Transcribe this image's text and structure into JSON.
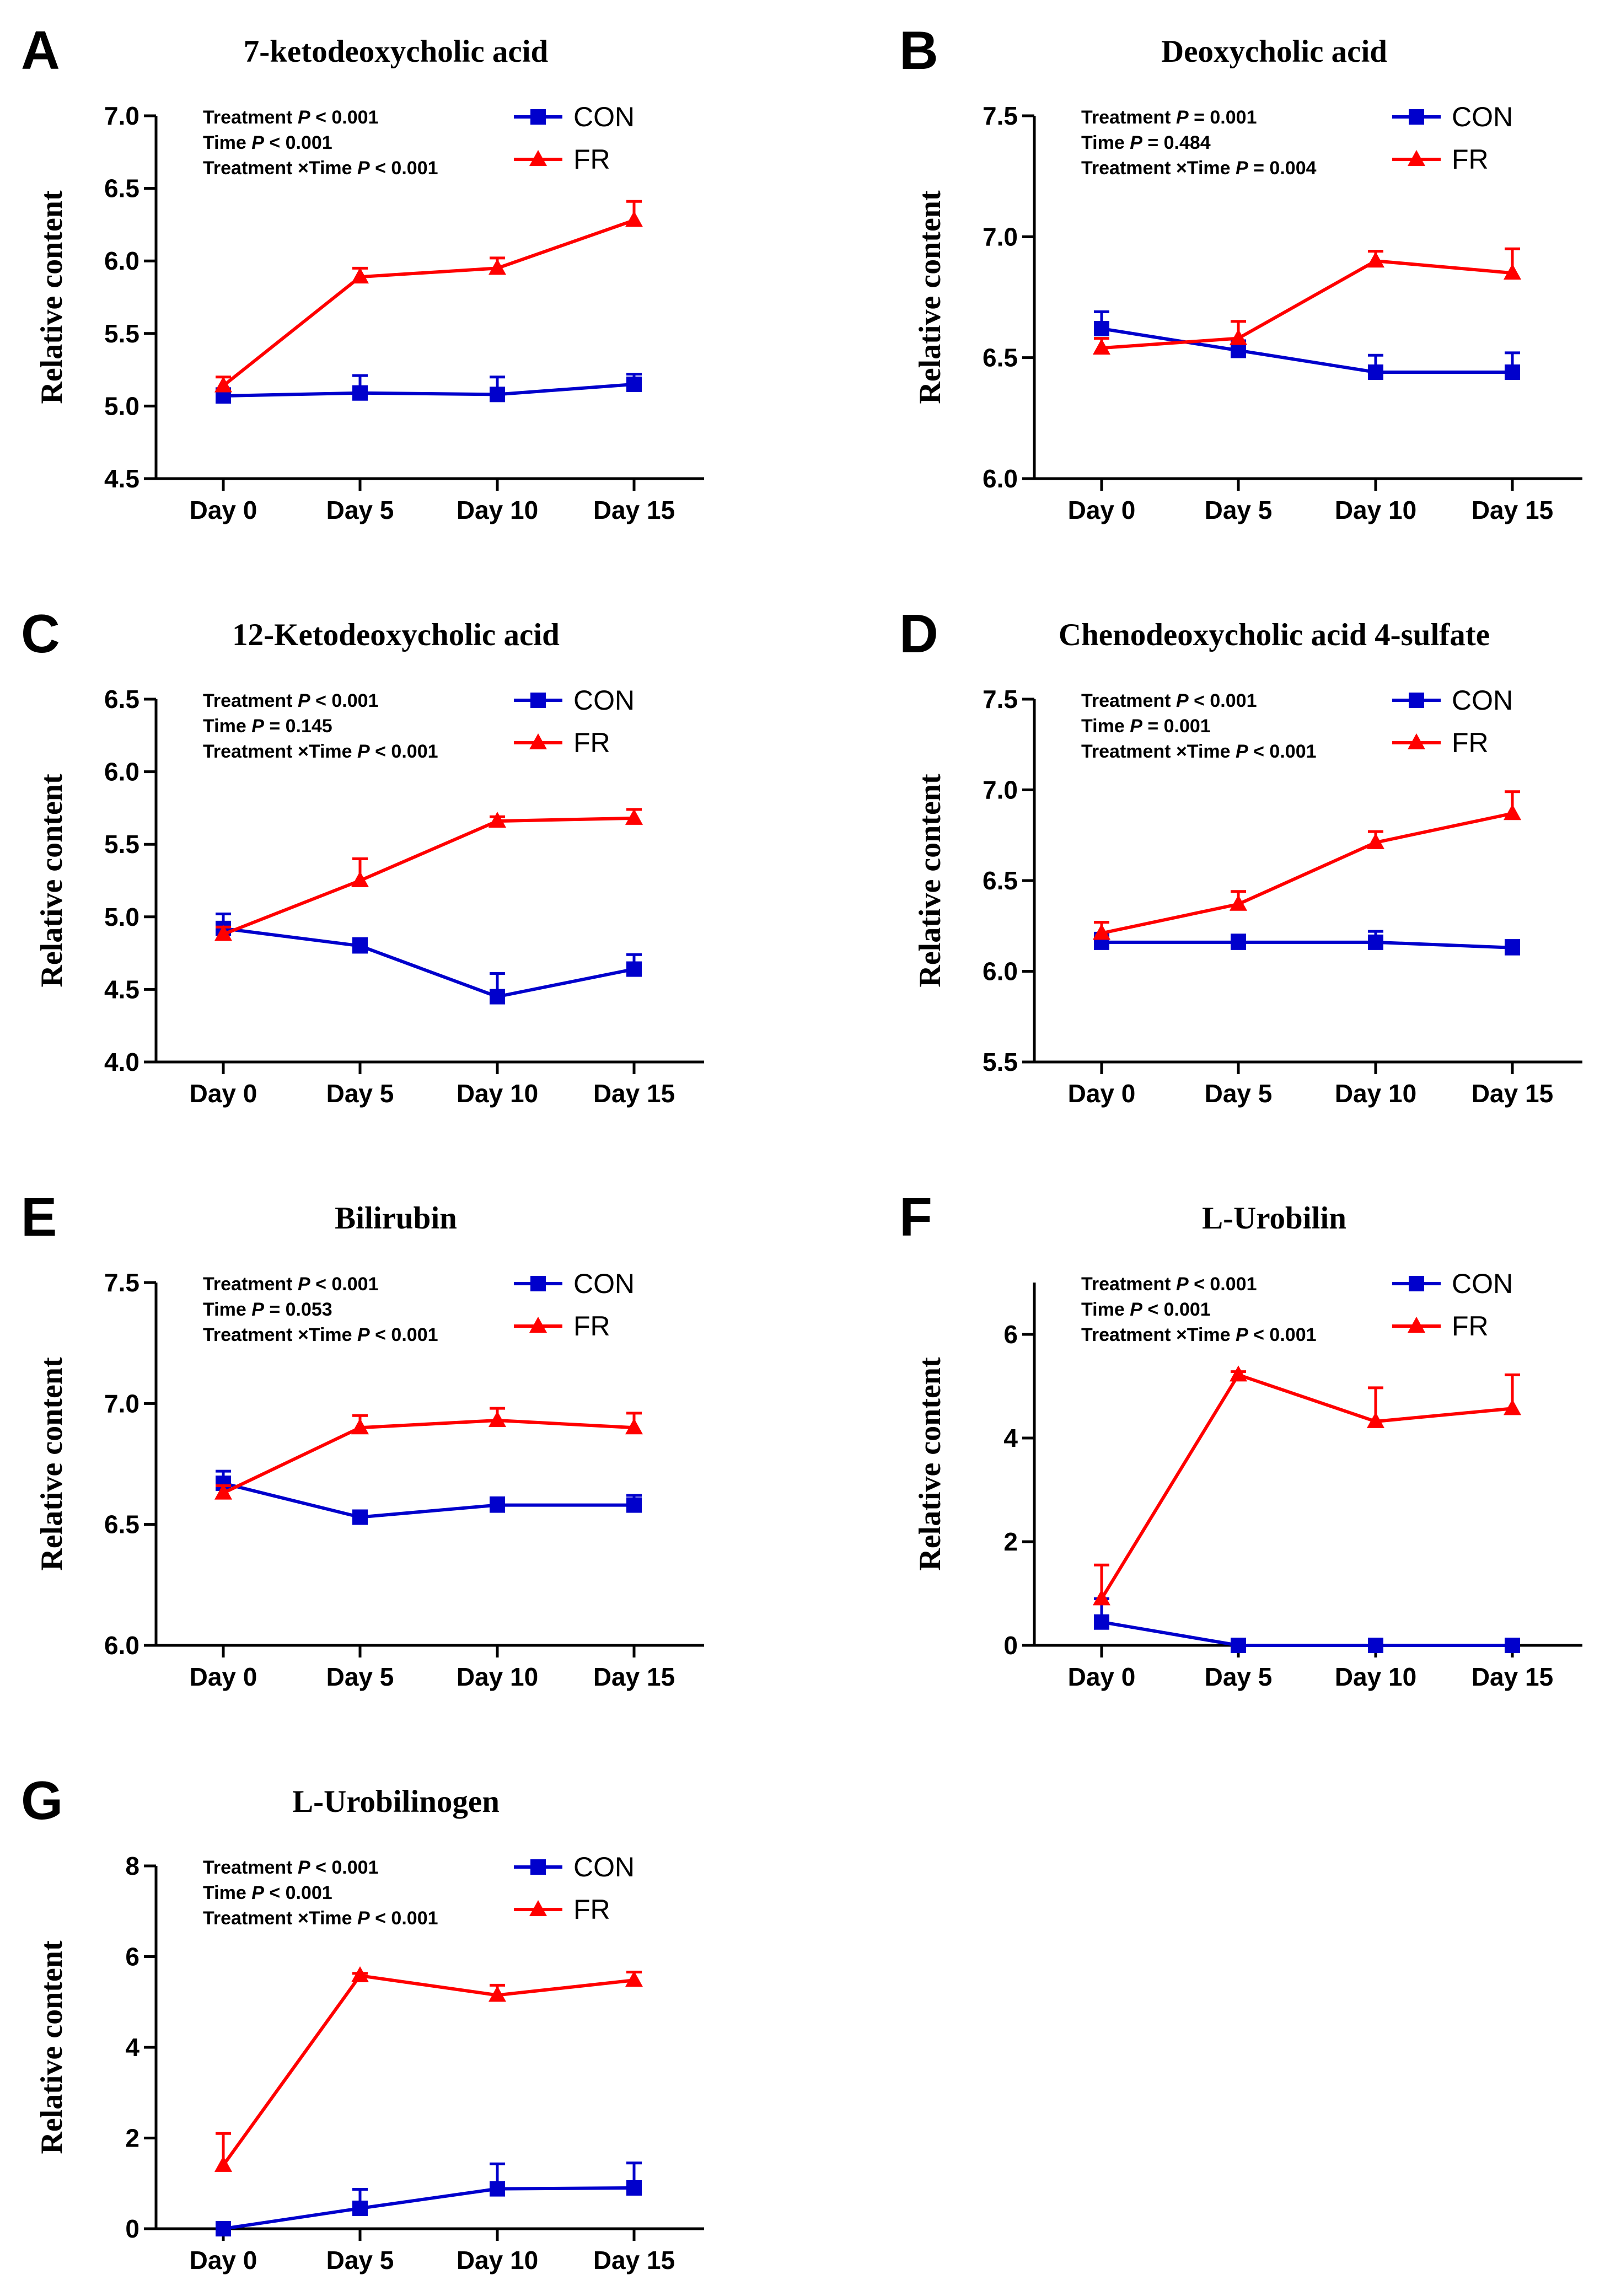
{
  "colors": {
    "con": "#0000cc",
    "fr": "#ff0000",
    "axis": "#000000"
  },
  "ylabel": "Relative  content",
  "legend": {
    "con": "CON",
    "fr": "FR"
  },
  "stat_labels": {
    "treatment": "Treatment",
    "time": "Time",
    "interaction": "Treatment ×Time",
    "p": "P"
  },
  "chart_data": [
    {
      "panel": "A",
      "type": "line",
      "title": "7-ketodeoxycholic acid",
      "categories": [
        "Day 0",
        "Day 5",
        "Day 10",
        "Day 15"
      ],
      "ylim": [
        4.5,
        7.0
      ],
      "yticks": [
        4.5,
        5.0,
        5.5,
        6.0,
        6.5,
        7.0
      ],
      "ytick_labels": [
        "4.5",
        "5.0",
        "5.5",
        "6.0",
        "6.5",
        "7.0"
      ],
      "series": [
        {
          "name": "CON",
          "key": "con",
          "values": [
            5.07,
            5.09,
            5.08,
            5.15
          ],
          "errors": [
            0.05,
            0.12,
            0.12,
            0.07
          ]
        },
        {
          "name": "FR",
          "key": "fr",
          "values": [
            5.14,
            5.89,
            5.95,
            6.28
          ],
          "errors": [
            0.06,
            0.06,
            0.07,
            0.13
          ]
        }
      ],
      "stats": [
        "< 0.001",
        "< 0.001",
        "< 0.001"
      ]
    },
    {
      "panel": "B",
      "type": "line",
      "title": "Deoxycholic acid",
      "categories": [
        "Day 0",
        "Day 5",
        "Day 10",
        "Day 15"
      ],
      "ylim": [
        6.0,
        7.5
      ],
      "yticks": [
        6.0,
        6.5,
        7.0,
        7.5
      ],
      "ytick_labels": [
        "6.0",
        "6.5",
        "7.0",
        "7.5"
      ],
      "series": [
        {
          "name": "CON",
          "key": "con",
          "values": [
            6.62,
            6.53,
            6.44,
            6.44
          ],
          "errors": [
            0.07,
            0.04,
            0.07,
            0.08
          ]
        },
        {
          "name": "FR",
          "key": "fr",
          "values": [
            6.54,
            6.58,
            6.9,
            6.85
          ],
          "errors": [
            0.04,
            0.07,
            0.04,
            0.1
          ]
        }
      ],
      "stats": [
        "= 0.001",
        "= 0.484",
        "= 0.004"
      ]
    },
    {
      "panel": "C",
      "type": "line",
      "title": "12-Ketodeoxycholic acid",
      "categories": [
        "Day 0",
        "Day 5",
        "Day 10",
        "Day 15"
      ],
      "ylim": [
        4.0,
        6.5
      ],
      "yticks": [
        4.0,
        4.5,
        5.0,
        5.5,
        6.0,
        6.5
      ],
      "ytick_labels": [
        "4.0",
        "4.5",
        "5.0",
        "5.5",
        "6.0",
        "6.5"
      ],
      "series": [
        {
          "name": "CON",
          "key": "con",
          "values": [
            4.92,
            4.8,
            4.45,
            4.64
          ],
          "errors": [
            0.1,
            0.05,
            0.16,
            0.1
          ]
        },
        {
          "name": "FR",
          "key": "fr",
          "values": [
            4.88,
            5.25,
            5.66,
            5.68
          ],
          "errors": [
            0.05,
            0.15,
            0.03,
            0.06
          ]
        }
      ],
      "stats": [
        "< 0.001",
        "= 0.145",
        "< 0.001"
      ]
    },
    {
      "panel": "D",
      "type": "line",
      "title": "Chenodeoxycholic acid 4-sulfate",
      "categories": [
        "Day 0",
        "Day 5",
        "Day 10",
        "Day 15"
      ],
      "ylim": [
        5.5,
        7.5
      ],
      "yticks": [
        5.5,
        6.0,
        6.5,
        7.0,
        7.5
      ],
      "ytick_labels": [
        "5.5",
        "6.0",
        "6.5",
        "7.0",
        "7.5"
      ],
      "series": [
        {
          "name": "CON",
          "key": "con",
          "values": [
            6.16,
            6.16,
            6.16,
            6.13
          ],
          "errors": [
            0.05,
            0.04,
            0.06,
            0.04
          ]
        },
        {
          "name": "FR",
          "key": "fr",
          "values": [
            6.21,
            6.37,
            6.71,
            6.87
          ],
          "errors": [
            0.06,
            0.07,
            0.06,
            0.12
          ]
        }
      ],
      "stats": [
        "< 0.001",
        "= 0.001",
        "< 0.001"
      ]
    },
    {
      "panel": "E",
      "type": "line",
      "title": "Bilirubin",
      "categories": [
        "Day 0",
        "Day 5",
        "Day 10",
        "Day 15"
      ],
      "ylim": [
        6.0,
        7.5
      ],
      "yticks": [
        6.0,
        6.5,
        7.0,
        7.5
      ],
      "ytick_labels": [
        "6.0",
        "6.5",
        "7.0",
        "7.5"
      ],
      "series": [
        {
          "name": "CON",
          "key": "con",
          "values": [
            6.67,
            6.53,
            6.58,
            6.58
          ],
          "errors": [
            0.05,
            0.02,
            0.03,
            0.04
          ]
        },
        {
          "name": "FR",
          "key": "fr",
          "values": [
            6.63,
            6.9,
            6.93,
            6.9
          ],
          "errors": [
            0.03,
            0.05,
            0.05,
            0.06
          ]
        }
      ],
      "stats": [
        "< 0.001",
        "= 0.053",
        "< 0.001"
      ]
    },
    {
      "panel": "F",
      "type": "line",
      "title": "L-Urobilin",
      "categories": [
        "Day 0",
        "Day 5",
        "Day 10",
        "Day 15"
      ],
      "ylim": [
        0,
        7
      ],
      "yticks": [
        0,
        2,
        4,
        6
      ],
      "ytick_labels": [
        "0",
        "2",
        "4",
        "6"
      ],
      "series": [
        {
          "name": "CON",
          "key": "con",
          "values": [
            0.45,
            0.0,
            0.0,
            0.0
          ],
          "errors": [
            0.45,
            0.0,
            0.0,
            0.0
          ]
        },
        {
          "name": "FR",
          "key": "fr",
          "values": [
            0.9,
            5.22,
            4.32,
            4.57
          ],
          "errors": [
            0.65,
            0.06,
            0.65,
            0.65
          ]
        }
      ],
      "stats": [
        "< 0.001",
        "< 0.001",
        "< 0.001"
      ]
    },
    {
      "panel": "G",
      "type": "line",
      "title": "L-Urobilinogen",
      "categories": [
        "Day 0",
        "Day 5",
        "Day 10",
        "Day 15"
      ],
      "ylim": [
        0,
        8
      ],
      "yticks": [
        0,
        2,
        4,
        6,
        8
      ],
      "ytick_labels": [
        "0",
        "2",
        "4",
        "6",
        "8"
      ],
      "series": [
        {
          "name": "CON",
          "key": "con",
          "values": [
            0.0,
            0.45,
            0.88,
            0.9
          ],
          "errors": [
            0.0,
            0.42,
            0.55,
            0.55
          ]
        },
        {
          "name": "FR",
          "key": "fr",
          "values": [
            1.4,
            5.58,
            5.15,
            5.48
          ],
          "errors": [
            0.7,
            0.05,
            0.22,
            0.18
          ]
        }
      ],
      "stats": [
        "< 0.001",
        "< 0.001",
        "< 0.001"
      ]
    }
  ]
}
